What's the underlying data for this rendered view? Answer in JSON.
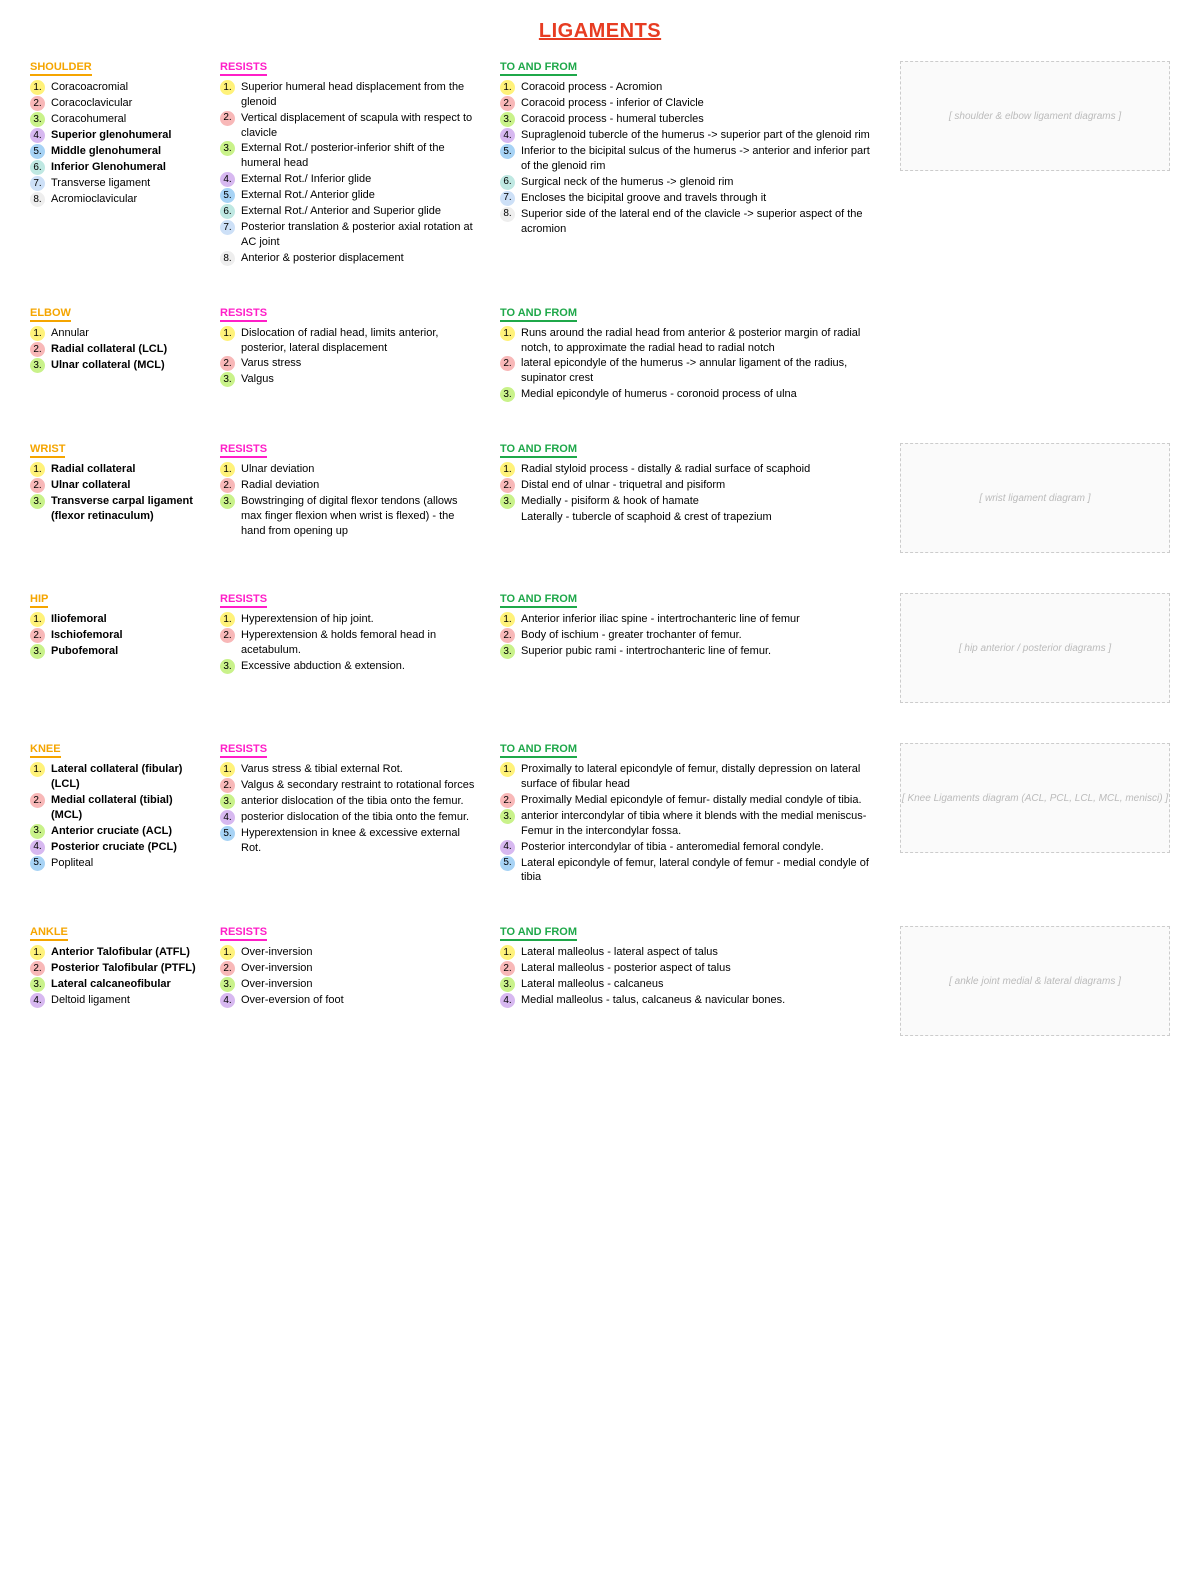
{
  "title": "LIGAMENTS",
  "title_color": "#e73c22",
  "dot_colors": [
    "#fff27a",
    "#f8b8b8",
    "#c9f28a",
    "#d7b8f0",
    "#a7d3f5",
    "#bfe8e2",
    "#cde0f7",
    "#eeeeee"
  ],
  "header_colors": {
    "joint": "#f5a500",
    "resists": "#ff1fc8",
    "tofrom": "#1fa84a"
  },
  "sections": [
    {
      "joint": "SHOULDER",
      "names": [
        {
          "t": "Coracoacromial"
        },
        {
          "t": "Coracoclavicular"
        },
        {
          "t": "Coracohumeral"
        },
        {
          "t": "Superior glenohumeral",
          "b": true
        },
        {
          "t": "Middle glenohumeral",
          "b": true
        },
        {
          "t": "Inferior Glenohumeral",
          "b": true
        },
        {
          "t": "Transverse ligament"
        },
        {
          "t": "Acromioclavicular"
        }
      ],
      "resists": [
        "Superior humeral head displacement from the glenoid",
        "Vertical displacement of scapula with respect to clavicle",
        "External Rot./ posterior-inferior shift of the humeral head",
        "External Rot./ Inferior glide",
        "External Rot./ Anterior glide",
        "External Rot./ Anterior and Superior glide",
        "Posterior translation & posterior axial rotation at AC joint",
        "Anterior & posterior displacement"
      ],
      "tofrom": [
        "Coracoid process - Acromion",
        "Coracoid process - inferior of Clavicle",
        "Coracoid process - humeral tubercles",
        "Supraglenoid tubercle of the humerus -> superior part of the glenoid rim",
        "Inferior to the bicipital sulcus of the humerus -> anterior and inferior part of the glenoid rim",
        "Surgical neck of the humerus -> glenoid rim",
        "Encloses the bicipital groove and travels through it",
        "Superior side of the lateral end of the clavicle -> superior aspect of the acromion"
      ],
      "img_label": "shoulder & elbow ligament diagrams"
    },
    {
      "joint": "ELBOW",
      "names": [
        {
          "t": "Annular"
        },
        {
          "t": "Radial collateral (LCL)",
          "b": true
        },
        {
          "t": "Ulnar collateral (MCL)",
          "b": true
        }
      ],
      "resists": [
        "Dislocation of radial head, limits anterior, posterior, lateral displacement",
        "Varus stress",
        "Valgus"
      ],
      "tofrom": [
        "Runs around the radial head from anterior & posterior margin of radial notch, to approximate the radial head to radial notch",
        "lateral epicondyle of the humerus -> annular ligament of the radius, supinator crest",
        "Medial epicondyle of humerus - coronoid process of ulna"
      ],
      "img_label": ""
    },
    {
      "joint": "WRIST",
      "names": [
        {
          "t": "Radial collateral",
          "b": true
        },
        {
          "t": "Ulnar collateral",
          "b": true
        },
        {
          "t": "Transverse carpal ligament (flexor retinaculum)",
          "b": true
        }
      ],
      "resists": [
        "Ulnar deviation",
        "Radial deviation",
        "Bowstringing of digital flexor tendons (allows max finger flexion when wrist is flexed) - the hand from opening up"
      ],
      "tofrom": [
        "Radial styloid process - distally & radial surface of scaphoid",
        "Distal end of ulnar - triquetral and pisiform",
        "Medially - pisiform & hook of hamate"
      ],
      "tofrom_extra": "Laterally - tubercle of scaphoid & crest of trapezium",
      "img_label": "wrist ligament diagram"
    },
    {
      "joint": "HIP",
      "names": [
        {
          "t": "Iliofemoral",
          "b": true
        },
        {
          "t": "Ischiofemoral",
          "b": true
        },
        {
          "t": "Pubofemoral",
          "b": true
        }
      ],
      "resists": [
        "Hyperextension of hip joint.",
        "Hyperextension & holds femoral head in acetabulum.",
        "Excessive abduction & extension."
      ],
      "tofrom": [
        "Anterior inferior iliac spine - intertrochanteric line of femur",
        "Body of ischium - greater trochanter of femur.",
        "Superior pubic rami - intertrochanteric line of femur."
      ],
      "img_label": "hip anterior / posterior diagrams"
    },
    {
      "joint": "KNEE",
      "names": [
        {
          "t": "Lateral collateral (fibular) (LCL)",
          "b": true
        },
        {
          "t": "Medial collateral (tibial) (MCL)",
          "b": true
        },
        {
          "t": "Anterior cruciate (ACL)",
          "b": true
        },
        {
          "t": "Posterior cruciate (PCL)",
          "b": true
        },
        {
          "t": "Popliteal"
        }
      ],
      "resists": [
        "Varus stress & tibial external Rot.",
        "Valgus & secondary restraint to rotational forces",
        "anterior dislocation of the tibia onto the femur.",
        "posterior dislocation of the tibia onto the femur.",
        "Hyperextension in knee & excessive external Rot."
      ],
      "tofrom": [
        "Proximally to lateral epicondyle of femur, distally depression on lateral surface of fibular head",
        "Proximally Medial epicondyle of femur-  distally medial condyle of tibia.",
        "anterior intercondylar of tibia where it blends with the medial meniscus- Femur in the intercondylar fossa.",
        "Posterior intercondylar of tibia - anteromedial femoral condyle.",
        "Lateral epicondyle of femur, lateral condyle of femur - medial condyle of tibia"
      ],
      "img_label": "Knee Ligaments diagram (ACL, PCL, LCL, MCL, menisci)"
    },
    {
      "joint": "ANKLE",
      "names": [
        {
          "t": "Anterior Talofibular (ATFL)",
          "b": true
        },
        {
          "t": "Posterior Talofibular (PTFL)",
          "b": true
        },
        {
          "t": "Lateral calcaneofibular",
          "b": true
        },
        {
          "t": "Deltoid ligament"
        }
      ],
      "resists": [
        "Over-inversion",
        "Over-inversion",
        "Over-inversion",
        "Over-eversion of foot"
      ],
      "tofrom": [
        "Lateral malleolus - lateral aspect of talus",
        "Lateral malleolus - posterior aspect of talus",
        "Lateral malleolus - calcaneus",
        "Medial malleolus - talus, calcaneus & navicular bones."
      ],
      "img_label": "ankle joint medial & lateral diagrams"
    }
  ],
  "labels": {
    "resists": "RESISTS",
    "tofrom": "TO AND FROM"
  }
}
